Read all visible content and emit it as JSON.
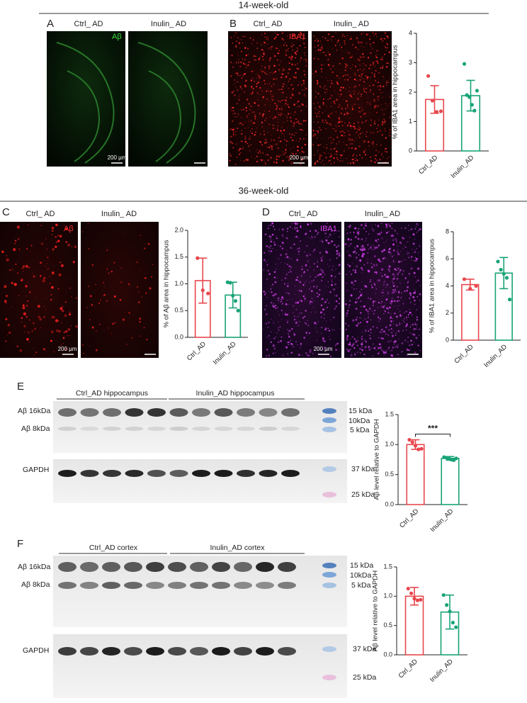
{
  "sections": [
    "14-week-old",
    "36-week-old"
  ],
  "panels": [
    {
      "label": "A",
      "images": [
        "Ctrl_ AD",
        "Inulin_ AD"
      ],
      "stain": "Aβ",
      "scale_bar": "200 µm"
    },
    {
      "label": "B",
      "images": [
        "Ctrl_ AD",
        "Inulin_ AD"
      ],
      "stain": "IBA1",
      "scale_bar": "200 µm"
    },
    {
      "label": "C",
      "images": [
        "Ctrl_ AD",
        "Inulin_ AD"
      ],
      "stain": "Aβ",
      "scale_bar": "200 µm"
    },
    {
      "label": "D",
      "images": [
        "Ctrl_ AD",
        "Inulin_ AD"
      ],
      "stain": "IBA1",
      "scale_bar": "200 µm"
    },
    {
      "label": "E",
      "groups": [
        "Ctrl_AD hippocampus",
        "Inulin_AD hippocampus"
      ],
      "bands": [
        "Aβ 16kDa",
        "Aβ 8kDa",
        "GAPDH"
      ],
      "markers": [
        "15 kDa",
        "10kDa",
        "5 kDa",
        "37 kDa",
        "25 kDa"
      ]
    },
    {
      "label": "F",
      "groups": [
        "Ctrl_AD cortex",
        "Inulin_AD cortex"
      ],
      "bands": [
        "Aβ 16kDa",
        "Aβ 8kDa",
        "GAPDH"
      ],
      "markers": [
        "15 kDa",
        "10kDa",
        "5 kDa",
        "37 kDa",
        "25 kDa"
      ]
    }
  ],
  "chart_data": [
    {
      "type": "bar",
      "y_label": "% of IBA1 area in hippocampus",
      "categories": [
        "Ctrl_AD",
        "Inulin_AD"
      ],
      "values": [
        1.75,
        1.88
      ],
      "errors": [
        0.47,
        0.52
      ],
      "points": [
        [
          2.55,
          1.71,
          1.33,
          1.35
        ],
        [
          2.96,
          1.9,
          1.83,
          1.57,
          1.37,
          2.05
        ]
      ],
      "colors": [
        "#e8474d",
        "#17a377"
      ],
      "ylim": [
        0,
        4
      ],
      "yticks": [
        0,
        1,
        2,
        3,
        4
      ]
    },
    {
      "type": "bar",
      "y_label": "% of Aβ area in hippocampus",
      "categories": [
        "Ctrl_AD",
        "Inulin_AD"
      ],
      "values": [
        1.06,
        0.79
      ],
      "errors": [
        0.42,
        0.24
      ],
      "points": [
        [
          1.48,
          0.88,
          0.82
        ],
        [
          1.03,
          1.02,
          0.78,
          0.68,
          0.5
        ]
      ],
      "colors": [
        "#e8474d",
        "#17a377"
      ],
      "ylim": [
        0,
        2
      ],
      "yticks": [
        {
          "value": 0,
          "label": "0.0"
        },
        {
          "value": 0.5,
          "label": "0.5"
        },
        {
          "value": 1,
          "label": "1.0"
        },
        {
          "value": 1.5,
          "label": "1.5"
        },
        {
          "value": 2,
          "label": "2.0"
        }
      ]
    },
    {
      "type": "bar",
      "y_label": "% of IBA1 area in hippocampus",
      "categories": [
        "Ctrl_AD",
        "Inulin_AD"
      ],
      "values": [
        4.1,
        4.95
      ],
      "errors": [
        0.4,
        1.15
      ],
      "points": [
        [
          4.5,
          3.8,
          4.0
        ],
        [
          5.8,
          5.2,
          4.9,
          4.6,
          3.0
        ]
      ],
      "colors": [
        "#e8474d",
        "#17a377"
      ],
      "ylim": [
        0,
        8
      ],
      "yticks": [
        0,
        2,
        4,
        6,
        8
      ]
    },
    {
      "type": "bar",
      "y_label": "Aβ level relative to GAPDH",
      "categories": [
        "Ctrl_AD",
        "Inulin_AD"
      ],
      "values": [
        1.0,
        0.77
      ],
      "errors": [
        0.08,
        0.03
      ],
      "points": [
        [
          1.08,
          1.04,
          0.98,
          0.92,
          0.93
        ],
        [
          0.79,
          0.78,
          0.76,
          0.75,
          0.74,
          0.77
        ]
      ],
      "colors": [
        "#e8474d",
        "#17a377"
      ],
      "ylim": [
        0,
        1.5
      ],
      "significance": "***",
      "yticks": [
        {
          "value": 0,
          "label": "0.0"
        },
        {
          "value": 0.5,
          "label": "0.5"
        },
        {
          "value": 1,
          "label": "1.0"
        },
        {
          "value": 1.5,
          "label": "1.5"
        }
      ]
    },
    {
      "type": "bar",
      "y_label": "Aβ level relative to GAPDH",
      "categories": [
        "Ctrl_AD",
        "Inulin_AD"
      ],
      "values": [
        1.0,
        0.73
      ],
      "errors": [
        0.15,
        0.29
      ],
      "points": [
        [
          1.13,
          1.05,
          0.96,
          0.93,
          0.94
        ],
        [
          1.02,
          0.85,
          0.74,
          0.55,
          0.47
        ]
      ],
      "colors": [
        "#e8474d",
        "#17a377"
      ],
      "ylim": [
        0,
        1.5
      ],
      "yticks": [
        {
          "value": 0,
          "label": "0.0"
        },
        {
          "value": 0.5,
          "label": "0.5"
        },
        {
          "value": 1,
          "label": "1.0"
        },
        {
          "value": 1.5,
          "label": "1.5"
        }
      ]
    }
  ]
}
